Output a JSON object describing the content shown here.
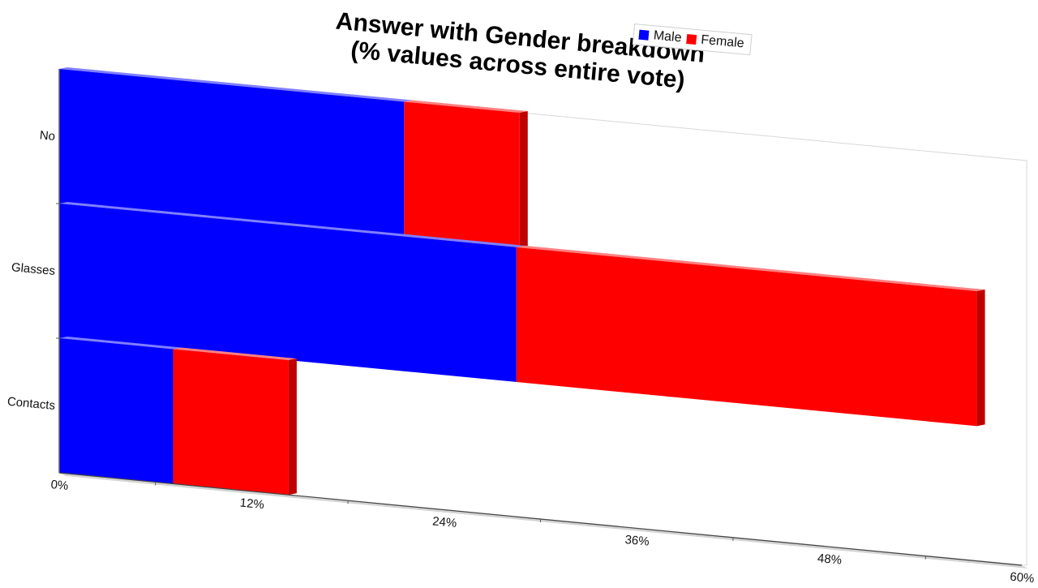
{
  "chart_data": {
    "type": "bar",
    "orientation": "horizontal",
    "stacked": true,
    "title_lines": [
      "Answer with Gender breakdown",
      "(% values across entire vote)"
    ],
    "categories": [
      "No",
      "Glasses",
      "Contacts"
    ],
    "series": [
      {
        "name": "Male",
        "color": "#0000ff",
        "values": [
          21.5,
          28.5,
          7.1
        ]
      },
      {
        "name": "Female",
        "color": "#ff0000",
        "values": [
          7.2,
          28.7,
          7.2
        ]
      }
    ],
    "x_ticks": [
      "0%",
      "12%",
      "24%",
      "36%",
      "48%",
      "60%"
    ],
    "xlim": [
      0,
      60
    ],
    "legend_position": "top-right",
    "grid": false
  }
}
